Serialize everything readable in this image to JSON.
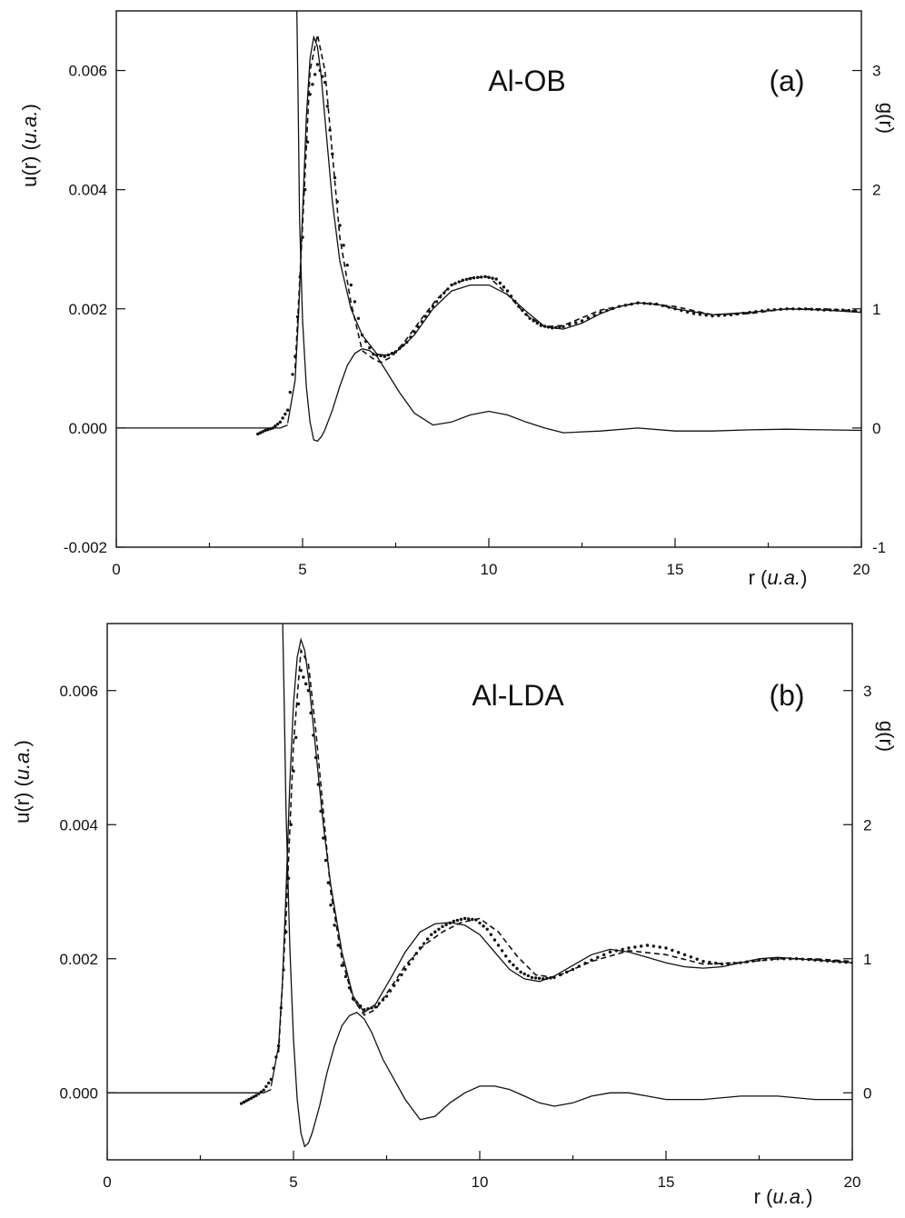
{
  "chart_data": [
    {
      "type": "line",
      "title": "Al-OB",
      "panel_label": "(a)",
      "xlabel": "r (u.a.)",
      "xlabel_main": "r (",
      "xlabel_italic": "u.a.",
      "xlabel_close": ")",
      "ylabel_left": "u(r) (u.a.)",
      "ylabel_left_main": "u(r) (",
      "ylabel_left_italic": "u.a.",
      "ylabel_left_close": ")",
      "ylabel_right": "g(r)",
      "xlim": [
        0,
        20
      ],
      "ylim_left": [
        -0.002,
        0.007
      ],
      "ylim_right": [
        -1,
        3.5
      ],
      "x_ticks": [
        "0",
        "5",
        "10",
        "15",
        "20"
      ],
      "y_left_ticks": [
        "-0.002",
        "0.000",
        "0.002",
        "0.004",
        "0.006"
      ],
      "y_right_ticks": [
        "-1",
        "0",
        "1",
        "2",
        "3"
      ],
      "grid": false,
      "series": [
        {
          "axis": "left",
          "style": "solid",
          "x": [
            4.84,
            4.88,
            4.92,
            5.0,
            5.1,
            5.2,
            5.3,
            5.4,
            5.5,
            5.6,
            5.8,
            6.0,
            6.2,
            6.4,
            6.6,
            6.8,
            7.0,
            7.3,
            7.6,
            8.0,
            8.5,
            9.0,
            9.5,
            10.0,
            10.5,
            11.0,
            11.5,
            12.0,
            13.0,
            14.0,
            15.0,
            16.0,
            17.0,
            18.0,
            19.0,
            20.0
          ],
          "y": [
            0.0073,
            0.0055,
            0.0035,
            0.0018,
            0.0007,
            0.0001,
            -0.0002,
            -0.00022,
            -0.00015,
            -3e-05,
            0.0003,
            0.0007,
            0.00105,
            0.00125,
            0.00133,
            0.0013,
            0.0012,
            0.0009,
            0.0006,
            0.00025,
            5e-05,
            0.0001,
            0.00022,
            0.00028,
            0.00022,
            0.0001,
            0.0,
            -8e-05,
            -5e-05,
            0.0,
            -5e-05,
            -5e-05,
            -3e-05,
            -2e-05,
            -3e-05,
            -4e-05
          ]
        },
        {
          "axis": "left",
          "style": "solid",
          "x": [
            0.0,
            4.4,
            4.6
          ],
          "y": [
            0.0,
            0.0,
            5e-05
          ]
        },
        {
          "axis": "right",
          "style": "solid",
          "x": [
            4.6,
            4.8,
            4.9,
            5.0,
            5.1,
            5.2,
            5.3,
            5.4,
            5.5,
            5.6,
            5.8,
            6.0,
            6.3,
            6.6,
            7.0,
            7.3,
            7.6,
            8.0,
            8.5,
            9.0,
            9.5,
            10.0,
            10.5,
            11.0,
            11.5,
            12.0,
            12.5,
            13.0,
            13.5,
            14.0,
            14.5,
            15.0,
            16.0,
            17.0,
            18.0,
            19.0,
            20.0
          ],
          "y": [
            0.04,
            0.4,
            1.0,
            1.8,
            2.6,
            3.1,
            3.28,
            3.2,
            2.95,
            2.6,
            1.9,
            1.4,
            1.0,
            0.78,
            0.62,
            0.61,
            0.66,
            0.78,
            1.0,
            1.15,
            1.2,
            1.2,
            1.12,
            0.98,
            0.85,
            0.83,
            0.88,
            0.96,
            1.02,
            1.05,
            1.04,
            1.0,
            0.95,
            0.97,
            1.0,
            0.99,
            0.97
          ]
        },
        {
          "axis": "right",
          "style": "dashed",
          "x": [
            4.8,
            5.0,
            5.2,
            5.4,
            5.6,
            5.8,
            6.0,
            6.3,
            6.6,
            6.9,
            7.1,
            7.4,
            7.8,
            8.2,
            8.6,
            9.0,
            9.5,
            10.0,
            10.5,
            11.0,
            11.5,
            12.0,
            13.0,
            14.0,
            15.0,
            16.0,
            17.0,
            18.0,
            19.0,
            20.0
          ],
          "y": [
            0.5,
            1.7,
            3.0,
            3.3,
            3.0,
            2.3,
            1.6,
            1.05,
            0.65,
            0.58,
            0.55,
            0.6,
            0.75,
            0.92,
            1.08,
            1.2,
            1.26,
            1.27,
            1.12,
            0.95,
            0.85,
            0.86,
            0.99,
            1.05,
            1.02,
            0.95,
            0.96,
            1.0,
            1.0,
            0.98
          ]
        },
        {
          "axis": "right",
          "style": "dotted",
          "x": [
            3.8,
            4.0,
            4.2,
            4.4,
            4.6,
            4.8,
            5.0,
            5.2,
            5.4,
            5.6,
            5.8,
            6.0,
            6.3,
            6.6,
            6.9,
            7.2,
            7.5,
            7.8,
            8.1,
            8.4,
            8.7,
            9.0,
            9.3,
            9.6,
            9.9,
            10.2,
            10.5,
            10.8,
            11.1,
            11.4,
            11.7,
            12.0,
            12.5,
            13.0,
            13.5,
            14.0,
            14.5,
            15.0,
            15.5,
            16.0,
            16.5,
            17.0,
            17.5,
            18.0,
            18.5,
            19.0,
            19.5,
            20.0
          ],
          "y": [
            -0.05,
            -0.02,
            0.0,
            0.05,
            0.15,
            0.6,
            1.6,
            2.8,
            3.05,
            2.9,
            2.3,
            1.7,
            1.2,
            0.78,
            0.62,
            0.6,
            0.64,
            0.72,
            0.85,
            0.98,
            1.1,
            1.2,
            1.24,
            1.26,
            1.27,
            1.25,
            1.15,
            1.02,
            0.92,
            0.86,
            0.84,
            0.85,
            0.9,
            0.97,
            1.02,
            1.05,
            1.04,
            1.0,
            0.96,
            0.94,
            0.95,
            0.97,
            0.99,
            1.0,
            1.0,
            0.99,
            0.99,
            0.98
          ]
        }
      ]
    },
    {
      "type": "line",
      "title": "Al-LDA",
      "panel_label": "(b)",
      "xlabel": "r (u.a.)",
      "xlabel_main": "r (",
      "xlabel_italic": "u.a.",
      "xlabel_close": ")",
      "ylabel_left": "u(r) (u.a.)",
      "ylabel_left_main": "u(r) (",
      "ylabel_left_italic": "u.a.",
      "ylabel_left_close": ")",
      "ylabel_right": "g(r)",
      "xlim": [
        0,
        20
      ],
      "ylim_left": [
        -0.001,
        0.007
      ],
      "ylim_right": [
        -0.5,
        3.5
      ],
      "x_ticks": [
        "0",
        "5",
        "10",
        "15",
        "20"
      ],
      "y_left_ticks": [
        "0.000",
        "0.002",
        "0.004",
        "0.006"
      ],
      "y_right_ticks": [
        "0",
        "1",
        "2",
        "3"
      ],
      "grid": false,
      "series": [
        {
          "axis": "left",
          "style": "solid",
          "x": [
            4.7,
            4.75,
            4.8,
            4.9,
            5.0,
            5.1,
            5.2,
            5.3,
            5.4,
            5.5,
            5.7,
            5.9,
            6.1,
            6.3,
            6.5,
            6.7,
            6.9,
            7.1,
            7.4,
            7.8,
            8.0,
            8.4,
            8.8,
            9.2,
            9.6,
            10.0,
            10.4,
            10.8,
            11.2,
            11.6,
            12.0,
            12.5,
            13.0,
            13.5,
            14.0,
            14.5,
            15.0,
            16.0,
            17.0,
            18.0,
            19.0,
            20.0
          ],
          "y": [
            0.0073,
            0.0058,
            0.0042,
            0.0022,
            0.0008,
            -0.0001,
            -0.0006,
            -0.0008,
            -0.00075,
            -0.0006,
            -0.0002,
            0.0003,
            0.0007,
            0.001,
            0.00115,
            0.0012,
            0.0011,
            0.0009,
            0.0005,
            0.0001,
            -0.0001,
            -0.0004,
            -0.00035,
            -0.00015,
            0.0,
            0.0001,
            0.0001,
            5e-05,
            -5e-05,
            -0.00015,
            -0.0002,
            -0.00015,
            -5e-05,
            0.0,
            0.0,
            -5e-05,
            -0.0001,
            -0.0001,
            -5e-05,
            -5e-05,
            -0.0001,
            -0.0001
          ]
        },
        {
          "axis": "left",
          "style": "solid",
          "x": [
            0.0,
            4.2,
            4.4
          ],
          "y": [
            0.0,
            0.0,
            5e-05
          ]
        },
        {
          "axis": "right",
          "style": "solid",
          "x": [
            4.4,
            4.6,
            4.7,
            4.8,
            4.9,
            5.0,
            5.1,
            5.2,
            5.3,
            5.4,
            5.6,
            5.8,
            6.0,
            6.3,
            6.6,
            6.9,
            7.2,
            7.6,
            8.0,
            8.4,
            8.8,
            9.2,
            9.6,
            10.0,
            10.4,
            10.8,
            11.2,
            11.6,
            12.0,
            12.5,
            13.0,
            13.5,
            14.0,
            14.5,
            15.0,
            15.5,
            16.0,
            16.5,
            17.0,
            17.5,
            18.0,
            18.5,
            19.0,
            19.5,
            20.0
          ],
          "y": [
            0.05,
            0.35,
            0.8,
            1.5,
            2.3,
            2.9,
            3.25,
            3.38,
            3.3,
            3.1,
            2.55,
            2.0,
            1.55,
            1.05,
            0.72,
            0.6,
            0.66,
            0.85,
            1.05,
            1.2,
            1.26,
            1.27,
            1.25,
            1.18,
            1.05,
            0.92,
            0.85,
            0.83,
            0.87,
            0.95,
            1.03,
            1.07,
            1.05,
            1.01,
            0.97,
            0.94,
            0.93,
            0.94,
            0.97,
            1.0,
            1.01,
            1.0,
            0.99,
            0.98,
            0.97
          ]
        },
        {
          "axis": "right",
          "style": "dashed",
          "x": [
            4.6,
            4.8,
            5.0,
            5.2,
            5.4,
            5.6,
            5.8,
            6.0,
            6.3,
            6.6,
            6.9,
            7.2,
            7.6,
            8.0,
            8.5,
            9.0,
            9.5,
            10.0,
            10.5,
            11.0,
            11.5,
            12.0,
            13.0,
            14.0,
            15.0,
            16.0,
            17.0,
            18.0,
            19.0,
            20.0
          ],
          "y": [
            0.3,
            1.3,
            2.6,
            3.3,
            3.2,
            2.7,
            2.1,
            1.5,
            1.0,
            0.7,
            0.58,
            0.62,
            0.78,
            0.95,
            1.1,
            1.2,
            1.27,
            1.3,
            1.2,
            1.02,
            0.88,
            0.86,
            0.98,
            1.06,
            1.03,
            0.96,
            0.97,
            1.0,
            1.0,
            0.98
          ]
        },
        {
          "axis": "right",
          "style": "dotted",
          "x": [
            3.6,
            3.8,
            4.0,
            4.2,
            4.4,
            4.6,
            4.8,
            5.0,
            5.2,
            5.4,
            5.6,
            5.8,
            6.0,
            6.3,
            6.6,
            6.9,
            7.2,
            7.5,
            7.8,
            8.1,
            8.4,
            8.7,
            9.0,
            9.3,
            9.6,
            9.9,
            10.2,
            10.5,
            10.8,
            11.1,
            11.4,
            11.7,
            12.0,
            12.5,
            13.0,
            13.5,
            14.0,
            14.5,
            15.0,
            15.5,
            16.0,
            16.5,
            17.0,
            17.5,
            18.0,
            18.5,
            19.0,
            19.5,
            20.0
          ],
          "y": [
            -0.08,
            -0.05,
            -0.02,
            0.02,
            0.1,
            0.35,
            1.2,
            2.4,
            3.15,
            3.0,
            2.5,
            1.9,
            1.4,
            0.95,
            0.7,
            0.62,
            0.64,
            0.72,
            0.84,
            0.96,
            1.08,
            1.18,
            1.24,
            1.28,
            1.3,
            1.29,
            1.22,
            1.1,
            0.98,
            0.9,
            0.86,
            0.85,
            0.86,
            0.92,
            0.99,
            1.05,
            1.08,
            1.1,
            1.08,
            1.03,
            0.98,
            0.96,
            0.97,
            0.99,
            1.0,
            1.0,
            0.99,
            0.98,
            0.97
          ]
        }
      ]
    }
  ]
}
